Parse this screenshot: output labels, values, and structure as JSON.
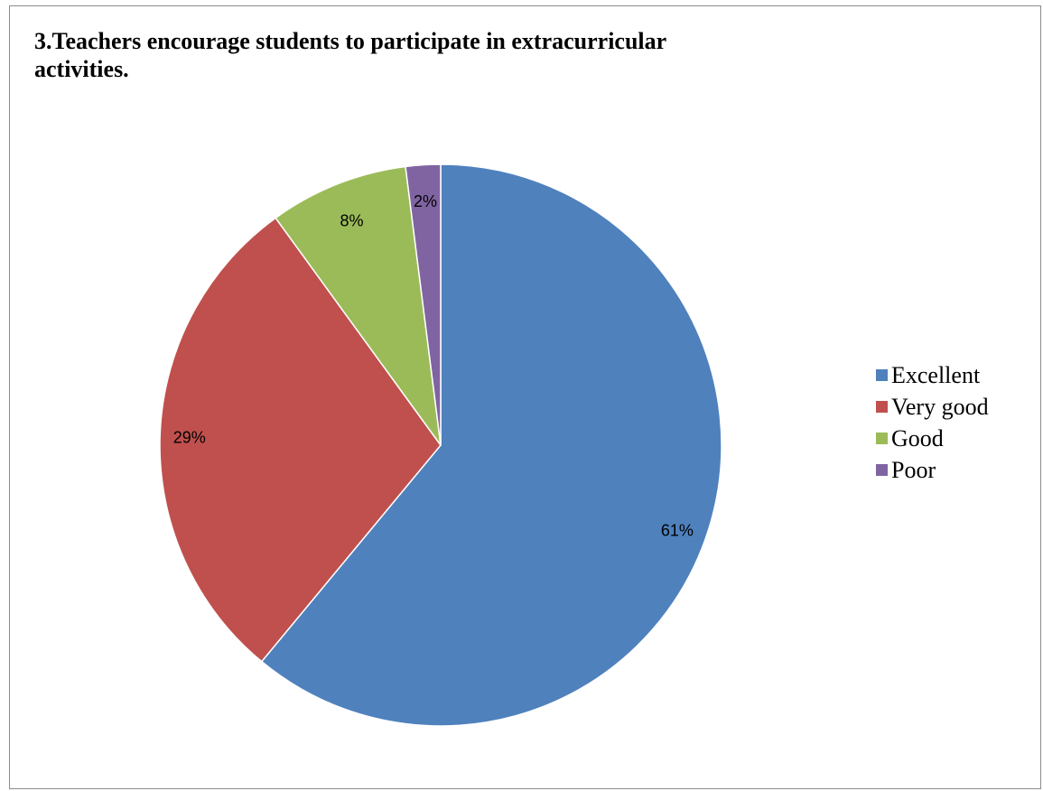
{
  "chart_data": {
    "type": "pie",
    "title": "3.Teachers encourage students to participate in extracurricular activities.",
    "categories": [
      "Excellent",
      "Very good",
      "Good",
      "Poor"
    ],
    "values": [
      61,
      29,
      8,
      2
    ],
    "labels": [
      "61%",
      "29%",
      "8%",
      "2%"
    ],
    "colors": [
      "#4f81bd",
      "#c0504d",
      "#9bbb59",
      "#8064a2"
    ],
    "legend": "right",
    "start_angle": "12 o'clock",
    "direction": "clockwise"
  }
}
